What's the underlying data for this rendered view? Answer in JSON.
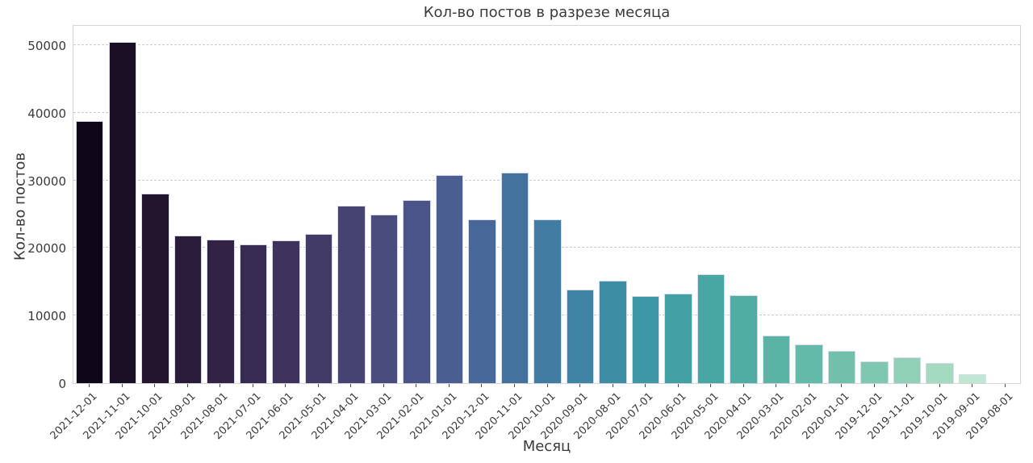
{
  "chart_data": {
    "type": "bar",
    "title": "Кол-во постов в разрезе месяца",
    "xlabel": "Месяц",
    "ylabel": "Кол-во постов",
    "categories": [
      "2021-12-01",
      "2021-11-01",
      "2021-10-01",
      "2021-09-01",
      "2021-08-01",
      "2021-07-01",
      "2021-06-01",
      "2021-05-01",
      "2021-04-01",
      "2021-03-01",
      "2021-02-01",
      "2021-01-01",
      "2020-12-01",
      "2020-11-01",
      "2020-10-01",
      "2020-09-01",
      "2020-08-01",
      "2020-07-01",
      "2020-06-01",
      "2020-05-01",
      "2020-04-01",
      "2020-03-01",
      "2020-02-01",
      "2020-01-01",
      "2019-12-01",
      "2019-11-01",
      "2019-10-01",
      "2019-09-01",
      "2019-08-01"
    ],
    "values": [
      38800,
      50500,
      28000,
      21800,
      21200,
      20500,
      21100,
      22100,
      26300,
      25000,
      27100,
      30800,
      24200,
      31200,
      24200,
      13900,
      15200,
      12900,
      13200,
      16100,
      13000,
      7000,
      5700,
      4800,
      3200,
      3800,
      3000,
      1300,
      0
    ],
    "bar_colors": [
      "#0f0617",
      "#1a0f24",
      "#24152e",
      "#2b1c3a",
      "#322346",
      "#382b52",
      "#3d335d",
      "#423a67",
      "#464372",
      "#494c7c",
      "#4a5489",
      "#4a5e92",
      "#476899",
      "#44729e",
      "#417ca2",
      "#3e85a4",
      "#3c8ea5",
      "#3d97a5",
      "#429fa3",
      "#48a6a3",
      "#4fada4",
      "#59b4a6",
      "#63baa8",
      "#70c0ab",
      "#7fc8b0",
      "#90d0b7",
      "#a4dac0",
      "#c0e7d1",
      "#d8f1e4"
    ],
    "ytick_values": [
      0,
      10000,
      20000,
      30000,
      40000,
      50000
    ],
    "ytick_labels": [
      "0",
      "10000",
      "20000",
      "30000",
      "40000",
      "50000"
    ],
    "ylim": [
      0,
      53100
    ],
    "grid": "horizontal dashed gridlines at each y tick, white background",
    "legend": "none"
  },
  "style_colors": {
    "text": "#3a3a3a",
    "frame": "#d4d4da",
    "gridline": "#cbcbcb",
    "background": "#ffffff"
  }
}
